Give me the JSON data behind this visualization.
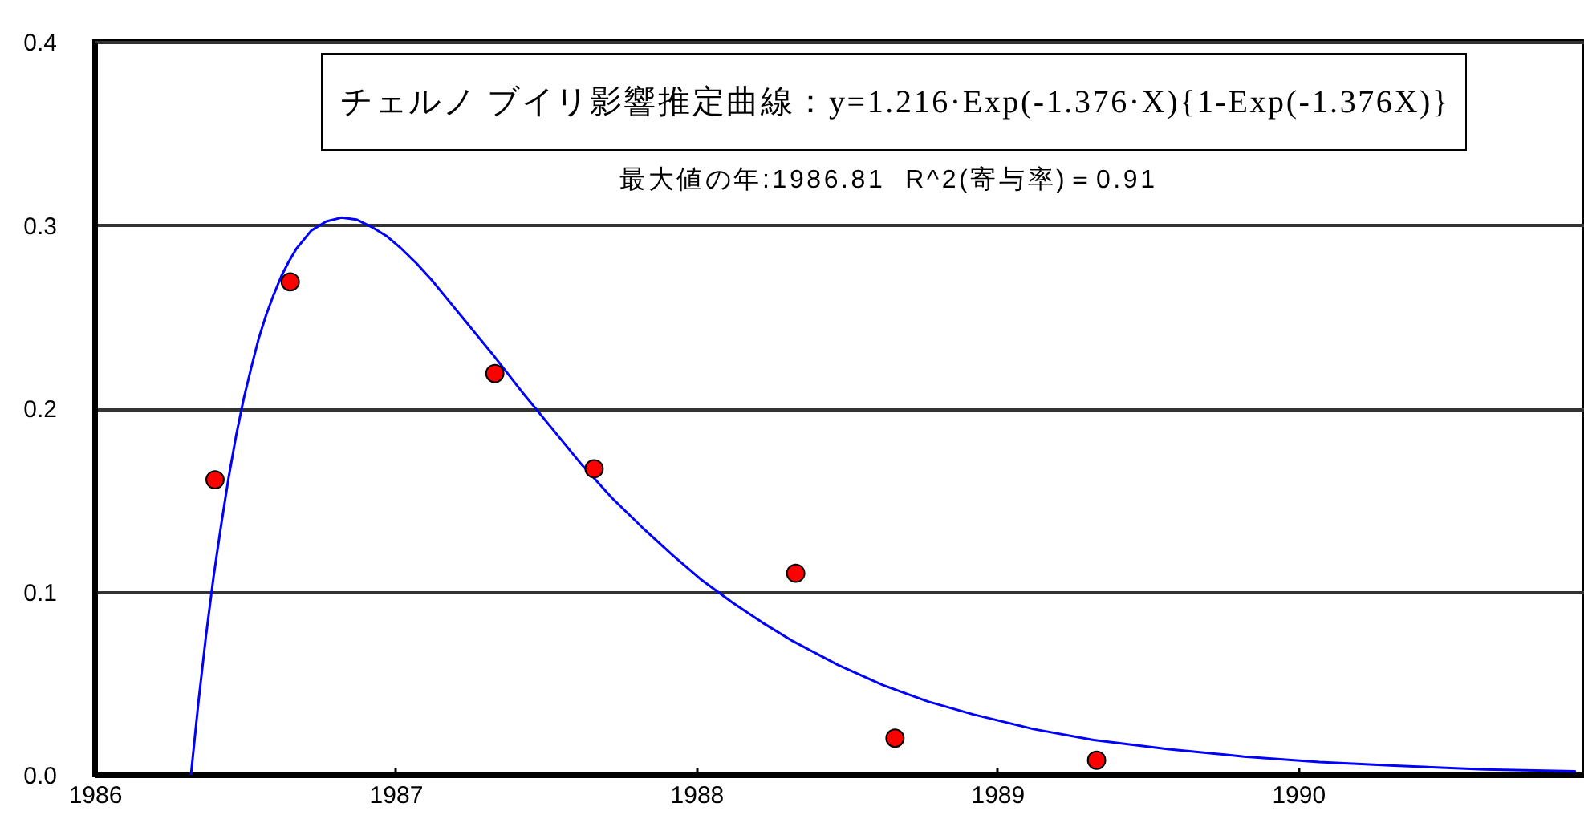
{
  "chart_data": {
    "type": "scatter",
    "annotations": [
      "チェルノ ブイリ影響推定曲線：y=1.216·Exp(-1.376·X){1-Exp(-1.376X)}",
      "最大値の年:1986.81  R^2(寄与率)＝0.91"
    ],
    "series": [
      {
        "type": "line",
        "color": "#0000ff",
        "x": [
          1986.32,
          1986.345,
          1986.37,
          1986.395,
          1986.42,
          1986.445,
          1986.47,
          1986.495,
          1986.52,
          1986.545,
          1986.57,
          1986.595,
          1986.62,
          1986.645,
          1986.67,
          1986.72,
          1986.77,
          1986.82,
          1986.87,
          1986.92,
          1986.97,
          1987.02,
          1987.07,
          1987.12,
          1987.17,
          1987.22,
          1987.27,
          1987.32,
          1987.42,
          1987.52,
          1987.62,
          1987.72,
          1987.82,
          1987.92,
          1988.02,
          1988.12,
          1988.22,
          1988.32,
          1988.47,
          1988.62,
          1988.77,
          1988.92,
          1989.12,
          1989.32,
          1989.57,
          1989.82,
          1990.07,
          1990.32,
          1990.62,
          1990.92
        ],
        "values": [
          0,
          0.04,
          0.076,
          0.108,
          0.136,
          0.162,
          0.185,
          0.205,
          0.222,
          0.238,
          0.251,
          0.262,
          0.272,
          0.28,
          0.287,
          0.297,
          0.302,
          0.304,
          0.303,
          0.299,
          0.294,
          0.287,
          0.279,
          0.27,
          0.26,
          0.25,
          0.24,
          0.23,
          0.209,
          0.189,
          0.169,
          0.151,
          0.135,
          0.12,
          0.106,
          0.094,
          0.083,
          0.073,
          0.06,
          0.049,
          0.04,
          0.033,
          0.025,
          0.019,
          0.014,
          0.01,
          0.007,
          0.005,
          0.003,
          0.002
        ]
      },
      {
        "color": "#ff0000",
        "marker": "circle",
        "x": [
          1986.4,
          1986.65,
          1987.33,
          1987.66,
          1988.33,
          1988.66,
          1989.33
        ],
        "values": [
          0.161,
          0.269,
          0.219,
          0.167,
          0.11,
          0.02,
          0.008
        ]
      }
    ],
    "xlim": [
      1986,
      1990.95
    ],
    "xticks": [
      1986,
      1987,
      1988,
      1989,
      1990
    ],
    "ylim": [
      0,
      0.4
    ],
    "yticks": [
      {
        "value": 0,
        "label": "0.0"
      },
      0.1,
      0.2,
      0.3,
      0.4
    ],
    "grid": "y"
  }
}
